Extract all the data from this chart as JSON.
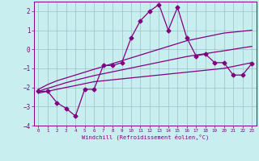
{
  "xlabel": "Windchill (Refroidissement éolien,°C)",
  "x": [
    0,
    1,
    2,
    3,
    4,
    5,
    6,
    7,
    8,
    9,
    10,
    11,
    12,
    13,
    14,
    15,
    16,
    17,
    18,
    19,
    20,
    21,
    22,
    23
  ],
  "y_main": [
    -2.2,
    -2.2,
    -2.8,
    -3.1,
    -3.5,
    -2.1,
    -2.1,
    -0.85,
    -0.85,
    -0.7,
    0.6,
    1.5,
    2.0,
    2.35,
    1.0,
    2.2,
    0.6,
    -0.35,
    -0.25,
    -0.7,
    -0.7,
    -1.35,
    -1.35,
    -0.75
  ],
  "y_upper": [
    -2.1,
    -1.85,
    -1.65,
    -1.5,
    -1.35,
    -1.2,
    -1.05,
    -0.9,
    -0.75,
    -0.6,
    -0.45,
    -0.3,
    -0.15,
    0.0,
    0.15,
    0.3,
    0.45,
    0.55,
    0.65,
    0.75,
    0.85,
    0.9,
    0.95,
    1.0
  ],
  "y_lower": [
    -2.3,
    -2.2,
    -2.1,
    -2.0,
    -1.9,
    -1.8,
    -1.7,
    -1.65,
    -1.6,
    -1.55,
    -1.5,
    -1.45,
    -1.4,
    -1.35,
    -1.3,
    -1.25,
    -1.2,
    -1.15,
    -1.1,
    -1.05,
    -1.0,
    -0.9,
    -0.8,
    -0.7
  ],
  "y_mid": [
    -2.2,
    -2.05,
    -1.9,
    -1.75,
    -1.62,
    -1.5,
    -1.38,
    -1.28,
    -1.18,
    -1.08,
    -0.98,
    -0.88,
    -0.78,
    -0.68,
    -0.58,
    -0.48,
    -0.38,
    -0.3,
    -0.23,
    -0.15,
    -0.08,
    0.0,
    0.08,
    0.15
  ],
  "ylim": [
    -4,
    2.5
  ],
  "xlim": [
    -0.5,
    23.5
  ],
  "yticks": [
    -4,
    -3,
    -2,
    -1,
    0,
    1,
    2
  ],
  "xticks": [
    0,
    1,
    2,
    3,
    4,
    5,
    6,
    7,
    8,
    9,
    10,
    11,
    12,
    13,
    14,
    15,
    16,
    17,
    18,
    19,
    20,
    21,
    22,
    23
  ],
  "line_color": "#800080",
  "bg_color": "#c8eef0",
  "grid_color": "#9dbfc8",
  "marker": "D",
  "marker_size": 2.5,
  "line_width": 0.9
}
